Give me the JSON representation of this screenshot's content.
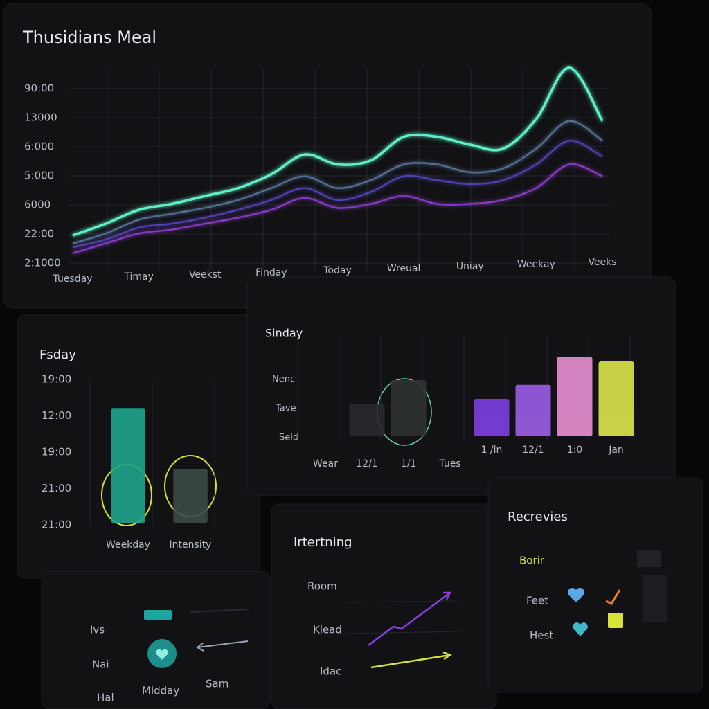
{
  "header": {
    "title": "Thusidians Meal"
  },
  "chart_data": [
    {
      "type": "line",
      "y_labels": [
        "90:00",
        "13000",
        "6:000",
        "5:000",
        "6000",
        "22:00",
        "2:1000"
      ],
      "categories": [
        "Tuesday",
        null,
        "Timay",
        null,
        "Veekst",
        null,
        "Finday",
        null,
        "Today",
        null,
        "Wreual",
        null,
        "Uniay",
        null,
        "Weekay",
        null,
        "Veeks"
      ],
      "ylim": [
        0,
        100
      ],
      "series": [
        {
          "color": "#5ff0c8",
          "values": [
            14,
            20,
            27,
            30,
            34,
            38,
            45,
            55,
            50,
            52,
            64,
            64,
            60,
            58,
            73,
            99,
            72
          ]
        },
        {
          "color": "#5c7fa8",
          "values": [
            10,
            15,
            22,
            25,
            28,
            32,
            38,
            44,
            38,
            42,
            50,
            50,
            46,
            48,
            58,
            72,
            62
          ]
        },
        {
          "color": "#5a48c8",
          "values": [
            8,
            12,
            18,
            20,
            23,
            27,
            32,
            38,
            32,
            36,
            44,
            42,
            40,
            42,
            50,
            62,
            54
          ]
        },
        {
          "color": "#9a3fe0",
          "values": [
            5,
            10,
            15,
            17,
            20,
            23,
            27,
            33,
            28,
            30,
            34,
            30,
            30,
            32,
            38,
            50,
            44
          ]
        }
      ]
    },
    {
      "type": "bar",
      "title": "Fsday",
      "y_labels": [
        "19:00",
        "12:00",
        "19:00",
        "21:00",
        "21:00"
      ],
      "categories": [
        "Weekday",
        "Intensity"
      ],
      "values": [
        85,
        40
      ],
      "colors": [
        "#1fa58c",
        "#3c4a44"
      ],
      "ylim": [
        0,
        100
      ]
    },
    {
      "type": "bar",
      "title": "Sinday",
      "y_labels": [
        "Nenc",
        "Tave",
        "Seld"
      ],
      "categories": [
        "Wear",
        "12/1",
        "1/1",
        "Tues",
        "1 /in",
        "12/1",
        "1:0",
        "Jan"
      ],
      "values": [
        null,
        35,
        60,
        null,
        40,
        55,
        85,
        80
      ],
      "colors": [
        "#2a2a2e",
        "#2a2a2e",
        "#2f3431",
        "#2a2a2e",
        "#7b3fe0",
        "#9b5de5",
        "#e88fd0",
        "#d9e64a"
      ],
      "ylim": [
        0,
        100
      ]
    }
  ],
  "bottom_left": {
    "labels": [
      "Ivs",
      "Nai",
      "Hal",
      "Midday",
      "Sam"
    ]
  },
  "interning": {
    "title": "Irtertning",
    "labels": [
      "Room",
      "Klead",
      "Idac"
    ]
  },
  "reviews": {
    "title": "Recrevies",
    "labels": [
      "Borir",
      "Feet",
      "Hest"
    ]
  }
}
